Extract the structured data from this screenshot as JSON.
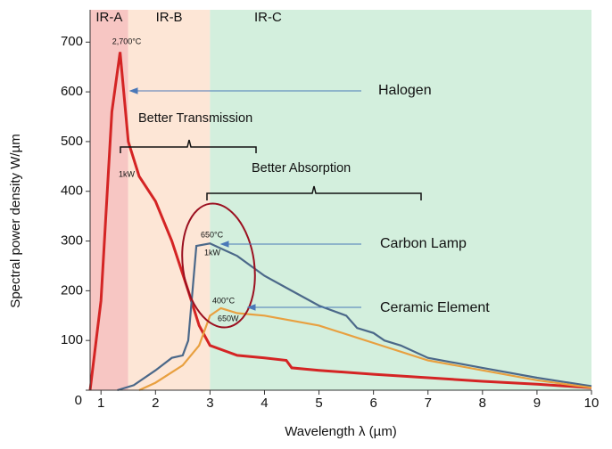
{
  "chart_data": {
    "type": "line",
    "y_label": "Spectral power density W/µm",
    "x_label": "Wavelength λ (µm)",
    "xlim": [
      0.8,
      10
    ],
    "xticks": [
      1,
      2,
      3,
      4,
      5,
      6,
      7,
      8,
      9,
      10
    ],
    "ylim": [
      0,
      765
    ],
    "yticks": [
      0,
      100,
      200,
      300,
      400,
      500,
      600,
      700
    ],
    "bands": [
      {
        "label": "IR-A",
        "from": 0.8,
        "to": 1.5,
        "color": "#f7c6c3"
      },
      {
        "label": "IR-B",
        "from": 1.5,
        "to": 3,
        "color": "#fde6d6"
      },
      {
        "label": "IR-C",
        "from": 3,
        "to": 10,
        "color": "#d3efdd"
      }
    ],
    "series": [
      {
        "name": "Halogen",
        "color": "#d42424",
        "x": [
          0.8,
          1.0,
          1.2,
          1.35,
          1.5,
          1.7,
          2.0,
          2.3,
          2.6,
          2.8,
          3.0,
          3.5,
          4.0,
          4.4,
          4.5,
          5.0,
          6,
          7,
          8,
          9,
          10
        ],
        "values": [
          0,
          180,
          560,
          680,
          500,
          430,
          380,
          300,
          200,
          130,
          90,
          70,
          65,
          60,
          45,
          40,
          32,
          25,
          18,
          12,
          5
        ]
      },
      {
        "name": "Carbon Lamp",
        "color": "#4b6889",
        "x": [
          1.3,
          1.6,
          2.0,
          2.3,
          2.5,
          2.6,
          2.75,
          3.0,
          3.5,
          4.0,
          4.5,
          5.0,
          5.5,
          5.7,
          6.0,
          6.2,
          6.5,
          7,
          8,
          9,
          10
        ],
        "values": [
          0,
          10,
          40,
          65,
          70,
          100,
          290,
          295,
          270,
          230,
          200,
          170,
          150,
          125,
          115,
          100,
          90,
          65,
          45,
          25,
          8
        ]
      },
      {
        "name": "Ceramic Element",
        "color": "#e8a040",
        "x": [
          1.7,
          2.0,
          2.5,
          2.8,
          3.0,
          3.2,
          3.5,
          4,
          5,
          6,
          7,
          8,
          9,
          10
        ],
        "values": [
          0,
          15,
          50,
          90,
          150,
          165,
          155,
          150,
          130,
          95,
          60,
          40,
          20,
          5
        ]
      }
    ],
    "annotations": [
      "2,700°C",
      "1kW",
      "650°C",
      "1kW",
      "400°C",
      "650W",
      "Better Transmission",
      "Better Absorption"
    ]
  }
}
